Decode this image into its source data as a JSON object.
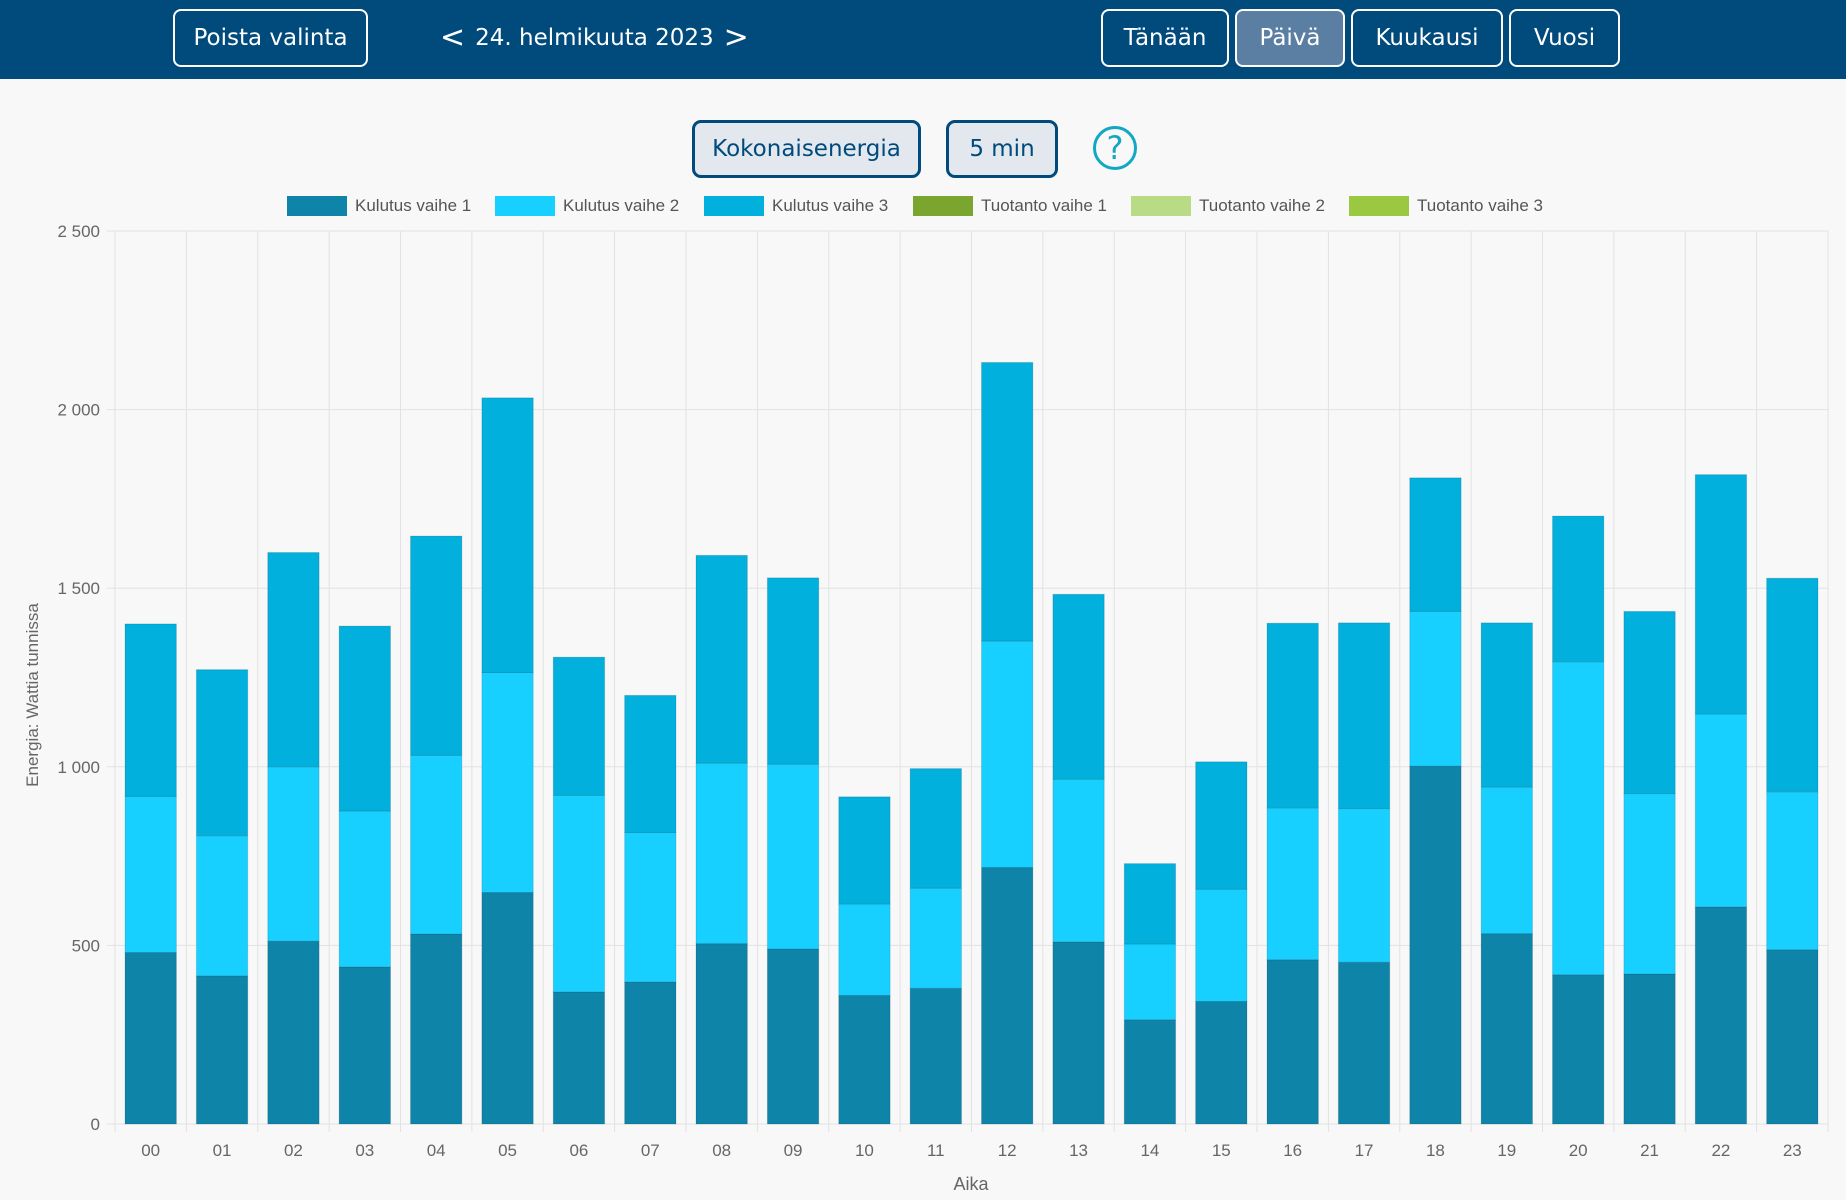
{
  "header": {
    "clear_selection": "Poista valinta",
    "prev_arrow": "<",
    "date": "24. helmikuuta 2023",
    "next_arrow": ">",
    "today": "Tänään",
    "day": "Päivä",
    "month": "Kuukausi",
    "year": "Vuosi"
  },
  "controls": {
    "total_energy": "Kokonaisenergia",
    "interval": "5 min",
    "help": "?"
  },
  "chart_data": {
    "type": "bar",
    "stacked": true,
    "xlabel": "Aika",
    "ylabel": "Energia: Wattia tunnissa",
    "ylim": [
      0,
      2500
    ],
    "yticks": [
      "0",
      "500",
      "1 000",
      "1 500",
      "2 000",
      "2 500"
    ],
    "categories": [
      "00",
      "01",
      "02",
      "03",
      "04",
      "05",
      "06",
      "07",
      "08",
      "09",
      "10",
      "11",
      "12",
      "13",
      "14",
      "15",
      "16",
      "17",
      "18",
      "19",
      "20",
      "21",
      "22",
      "23"
    ],
    "series": [
      {
        "name": "Kulutus vaihe 1",
        "color": "#0e84a8",
        "values": [
          480,
          415,
          512,
          440,
          532,
          648,
          370,
          398,
          505,
          490,
          360,
          380,
          718,
          510,
          292,
          343,
          460,
          453,
          1002,
          533,
          418,
          420,
          608,
          488
        ]
      },
      {
        "name": "Kulutus vaihe 2",
        "color": "#17d0ff",
        "values": [
          437,
          392,
          488,
          436,
          500,
          616,
          550,
          418,
          505,
          517,
          256,
          280,
          634,
          455,
          212,
          314,
          425,
          430,
          433,
          410,
          876,
          505,
          540,
          442
        ]
      },
      {
        "name": "Kulutus vaihe 3",
        "color": "#01b0dc",
        "values": [
          483,
          465,
          600,
          518,
          614,
          769,
          387,
          384,
          582,
          522,
          300,
          335,
          780,
          518,
          225,
          357,
          517,
          520,
          374,
          460,
          408,
          510,
          670,
          598
        ]
      },
      {
        "name": "Tuotanto vaihe 1",
        "color": "#7aa52e",
        "values": [
          0,
          0,
          0,
          0,
          0,
          0,
          0,
          0,
          0,
          0,
          0,
          0,
          0,
          0,
          0,
          0,
          0,
          0,
          0,
          0,
          0,
          0,
          0,
          0
        ]
      },
      {
        "name": "Tuotanto vaihe 2",
        "color": "#badb85",
        "values": [
          0,
          0,
          0,
          0,
          0,
          0,
          0,
          0,
          0,
          0,
          0,
          0,
          0,
          0,
          0,
          0,
          0,
          0,
          0,
          0,
          0,
          0,
          0,
          0
        ]
      },
      {
        "name": "Tuotanto vaihe 3",
        "color": "#9ac941",
        "values": [
          0,
          0,
          0,
          0,
          0,
          0,
          0,
          0,
          0,
          0,
          0,
          0,
          0,
          0,
          0,
          0,
          0,
          0,
          0,
          0,
          0,
          0,
          0,
          0
        ]
      }
    ],
    "grid": true,
    "legend": "top"
  }
}
